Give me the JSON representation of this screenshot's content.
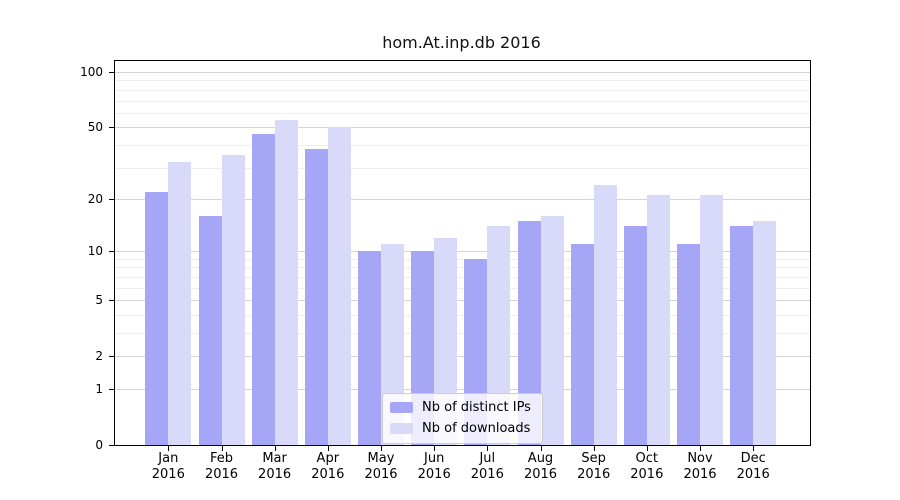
{
  "figure": {
    "title": "hom.At.inp.db 2016"
  },
  "chart_data": {
    "type": "bar",
    "title": "hom.At.inp.db 2016",
    "scale": "log1p",
    "grid": true,
    "legend_position": "bottom-center-inside",
    "categories": [
      "Jan",
      "Feb",
      "Mar",
      "Apr",
      "May",
      "Jun",
      "Jul",
      "Aug",
      "Sep",
      "Oct",
      "Nov",
      "Dec"
    ],
    "category_year": "2016",
    "series": [
      {
        "name": "Nb of distinct IPs",
        "color": "#a6a6f7",
        "values": [
          22,
          16,
          46,
          38,
          10,
          10,
          9,
          15,
          11,
          14,
          11,
          14
        ]
      },
      {
        "name": "Nb of downloads",
        "color": "#d9d9fa",
        "values": [
          32,
          35,
          55,
          50,
          11,
          12,
          14,
          16,
          24,
          21,
          21,
          15
        ]
      }
    ],
    "ylim": [
      0,
      100
    ],
    "y_ticks": [
      0,
      1,
      2,
      5,
      10,
      20,
      50,
      100
    ],
    "y_minor_gridlines": [
      3,
      4,
      6,
      7,
      8,
      9,
      30,
      40,
      60,
      70,
      80,
      90
    ],
    "colors": {
      "major_gridline": "#d4d4d4",
      "minor_gridline": "#eeeeee",
      "spine": "#000000",
      "background": "#ffffff"
    }
  }
}
